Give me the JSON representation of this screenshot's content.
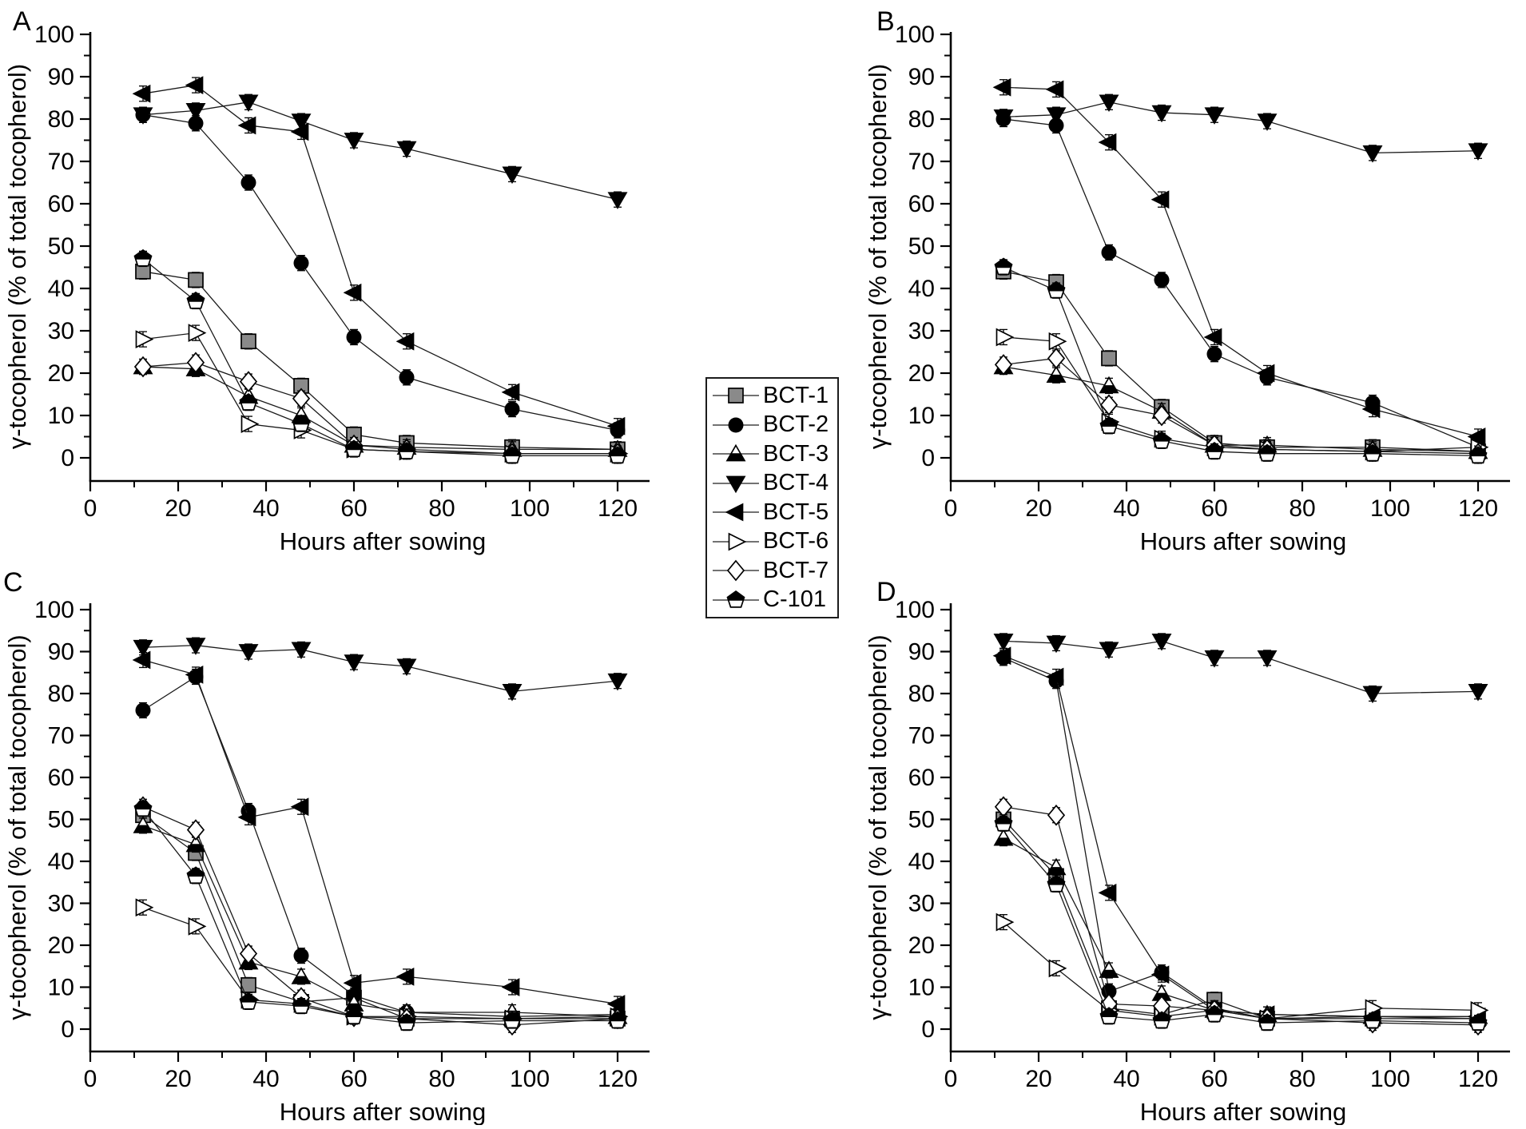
{
  "figure": {
    "background": "#ffffff",
    "ink": "#000000"
  },
  "colors": {
    "gray_marker_fill": "#8a8a8a",
    "open_marker_fill": "#ffffff",
    "line": "#1a1a1a",
    "axis": "#000000"
  },
  "legend": {
    "entries": [
      "BCT-1",
      "BCT-2",
      "BCT-3",
      "BCT-4",
      "BCT-5",
      "BCT-6",
      "BCT-7",
      "C-101"
    ]
  },
  "chart_data": {
    "type": "line",
    "title": "",
    "x_label": "Hours after sowing",
    "y_label": "γ-tocopherol (% of total tocopherol)",
    "x": [
      12,
      24,
      36,
      48,
      60,
      72,
      96,
      120
    ],
    "x_ticks": [
      0,
      20,
      40,
      60,
      80,
      100,
      120
    ],
    "x_minor_ticks": [
      10,
      30,
      50,
      70,
      90,
      110
    ],
    "y_ticks": [
      0,
      10,
      20,
      30,
      40,
      50,
      60,
      70,
      80,
      90,
      100
    ],
    "y_minor_ticks": [
      5,
      15,
      25,
      35,
      45,
      55,
      65,
      75,
      85,
      95
    ],
    "xlim": [
      0,
      127
    ],
    "ylim": [
      -5,
      101
    ],
    "grid": false,
    "legend_position": "center-between-panels",
    "error_bar_half_height": 1.8,
    "panels": [
      {
        "id": "A",
        "label": "A"
      },
      {
        "id": "B",
        "label": "B"
      },
      {
        "id": "C",
        "label": "C"
      },
      {
        "id": "D",
        "label": "D"
      }
    ],
    "series": [
      {
        "name": "BCT-1",
        "marker": "square-gray",
        "values": {
          "A": [
            44,
            42,
            27.5,
            17,
            5.5,
            3.5,
            2.5,
            2
          ],
          "B": [
            44,
            41.5,
            23.5,
            12,
            3.5,
            2.5,
            2.5,
            1.5
          ],
          "C": [
            51,
            42,
            10.5,
            6.5,
            7.5,
            2.5,
            2.5,
            2.5
          ],
          "D": [
            50,
            36.5,
            5,
            3.5,
            7,
            2.5,
            2.5,
            2.5
          ]
        }
      },
      {
        "name": "BCT-2",
        "marker": "circle-black",
        "values": {
          "A": [
            81,
            79,
            65,
            46,
            28.5,
            19,
            11.5,
            6.5
          ],
          "B": [
            80,
            78.5,
            48.5,
            42,
            24.5,
            19,
            13,
            2.5
          ],
          "C": [
            76,
            84,
            52,
            17.5,
            8,
            4,
            3,
            3.5
          ],
          "D": [
            88.5,
            83,
            9,
            13.5,
            5,
            2.5,
            3,
            2.5
          ]
        }
      },
      {
        "name": "BCT-3",
        "marker": "triangle-up-half",
        "values": {
          "A": [
            21.5,
            21,
            14.5,
            10,
            3,
            2.5,
            2,
            2
          ],
          "B": [
            21.5,
            19.5,
            17,
            11,
            3,
            3,
            2,
            1.5
          ],
          "C": [
            48.5,
            44,
            16,
            12.5,
            6,
            4,
            4,
            3
          ],
          "D": [
            45.5,
            38.5,
            14,
            8.5,
            4.5,
            3.5,
            3,
            3
          ]
        }
      },
      {
        "name": "BCT-4",
        "marker": "triangle-down-black",
        "values": {
          "A": [
            81,
            82,
            84,
            79.5,
            75,
            73,
            67,
            61
          ],
          "B": [
            80.5,
            81,
            84,
            81.5,
            81,
            79.5,
            72,
            72.5
          ],
          "C": [
            91,
            91.5,
            90,
            90.5,
            87.5,
            86.5,
            80.5,
            83
          ],
          "D": [
            92.5,
            92,
            90.5,
            92.5,
            88.5,
            88.5,
            80,
            80.5
          ]
        }
      },
      {
        "name": "BCT-5",
        "marker": "triangle-left-black",
        "values": {
          "A": [
            86,
            88,
            78.5,
            77,
            39,
            27.5,
            15.5,
            7.5
          ],
          "B": [
            87.5,
            87,
            74.5,
            61,
            28.5,
            20,
            11.5,
            5
          ],
          "C": [
            88,
            84.5,
            50.5,
            53,
            11,
            12.5,
            10,
            6
          ],
          "D": [
            89,
            84,
            32.5,
            13,
            4.5,
            3.5,
            3,
            3
          ]
        }
      },
      {
        "name": "BCT-6",
        "marker": "triangle-right-open",
        "values": {
          "A": [
            28,
            29.5,
            8,
            6.5,
            2,
            1.5,
            1,
            1
          ],
          "B": [
            28.5,
            27.5,
            8.5,
            4.5,
            2.5,
            2,
            1.5,
            2.5
          ],
          "C": [
            29,
            24.5,
            7,
            6,
            3,
            3,
            2.5,
            3
          ],
          "D": [
            25.5,
            14.5,
            4.5,
            3,
            4.5,
            2.5,
            5,
            4.5
          ]
        }
      },
      {
        "name": "BCT-7",
        "marker": "diamond-open",
        "values": {
          "A": [
            21.5,
            22.5,
            18,
            14,
            3,
            2,
            1,
            1
          ],
          "B": [
            22,
            23.5,
            12.5,
            10,
            3,
            2,
            1.5,
            1
          ],
          "C": [
            53,
            47.5,
            18,
            7.5,
            3,
            2.5,
            1,
            2.5
          ],
          "D": [
            53,
            51,
            6,
            5.5,
            4.5,
            2.5,
            1.5,
            1
          ]
        }
      },
      {
        "name": "C-101",
        "marker": "pentagon-half",
        "values": {
          "A": [
            47,
            37,
            13,
            8,
            2,
            1.5,
            0.5,
            0.5
          ],
          "B": [
            45,
            39.5,
            7.5,
            4,
            1.5,
            1,
            1,
            0.5
          ],
          "C": [
            52.5,
            36.5,
            6.5,
            5.5,
            3,
            1.5,
            2,
            2
          ],
          "D": [
            49,
            34.5,
            3,
            2,
            3.5,
            1.5,
            2,
            1.5
          ]
        }
      }
    ]
  }
}
